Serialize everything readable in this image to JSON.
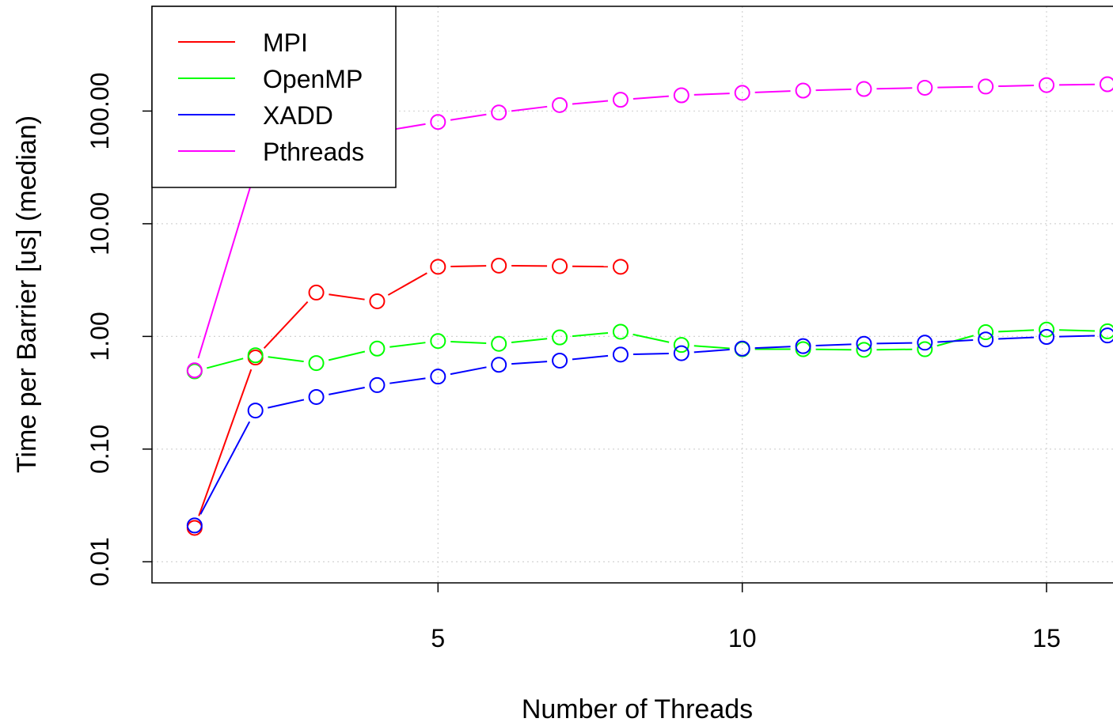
{
  "chart_data": {
    "type": "line",
    "title": "",
    "xlabel": "Number of Threads",
    "ylabel": "Time per Barrier [us] (median)",
    "x_scale": "linear",
    "y_scale": "log",
    "xlim": [
      0.3,
      16.3
    ],
    "ylim": [
      0.0065,
      850
    ],
    "x_ticks": [
      5,
      10,
      15
    ],
    "x_tick_labels": [
      "5",
      "10",
      "15"
    ],
    "y_ticks": [
      0.01,
      0.1,
      1,
      10,
      100
    ],
    "y_tick_labels": [
      "0.01",
      "0.10",
      "1.00",
      "10.00",
      "100.00"
    ],
    "grid": true,
    "legend_position": "top-left",
    "series": [
      {
        "name": "MPI",
        "color": "#ff0000",
        "x": [
          1,
          2,
          3,
          4,
          5,
          6,
          7,
          8
        ],
        "values": [
          0.02,
          0.65,
          2.45,
          2.05,
          4.15,
          4.25,
          4.2,
          4.15
        ]
      },
      {
        "name": "OpenMP",
        "color": "#00ff00",
        "x": [
          1,
          2,
          3,
          4,
          5,
          6,
          7,
          8,
          9,
          10,
          11,
          12,
          13,
          14,
          15,
          16
        ],
        "values": [
          0.49,
          0.68,
          0.58,
          0.78,
          0.91,
          0.86,
          0.98,
          1.1,
          0.84,
          0.77,
          0.77,
          0.76,
          0.77,
          1.09,
          1.15,
          1.11
        ]
      },
      {
        "name": "XADD",
        "color": "#0000ff",
        "x": [
          1,
          2,
          3,
          4,
          5,
          6,
          7,
          8,
          9,
          10,
          11,
          12,
          13,
          14,
          15,
          16
        ],
        "values": [
          0.021,
          0.22,
          0.29,
          0.37,
          0.44,
          0.56,
          0.61,
          0.69,
          0.71,
          0.78,
          0.82,
          0.86,
          0.88,
          0.94,
          0.99,
          1.02
        ]
      },
      {
        "name": "Pthreads",
        "color": "#ff00ff",
        "x": [
          1,
          2,
          3,
          4,
          5,
          6,
          7,
          8,
          9,
          10,
          11,
          12,
          13,
          14,
          15,
          16
        ],
        "values": [
          0.5,
          30,
          50,
          65,
          80,
          97,
          113,
          126,
          138,
          145,
          152,
          157,
          161,
          165,
          170,
          173
        ]
      }
    ]
  }
}
